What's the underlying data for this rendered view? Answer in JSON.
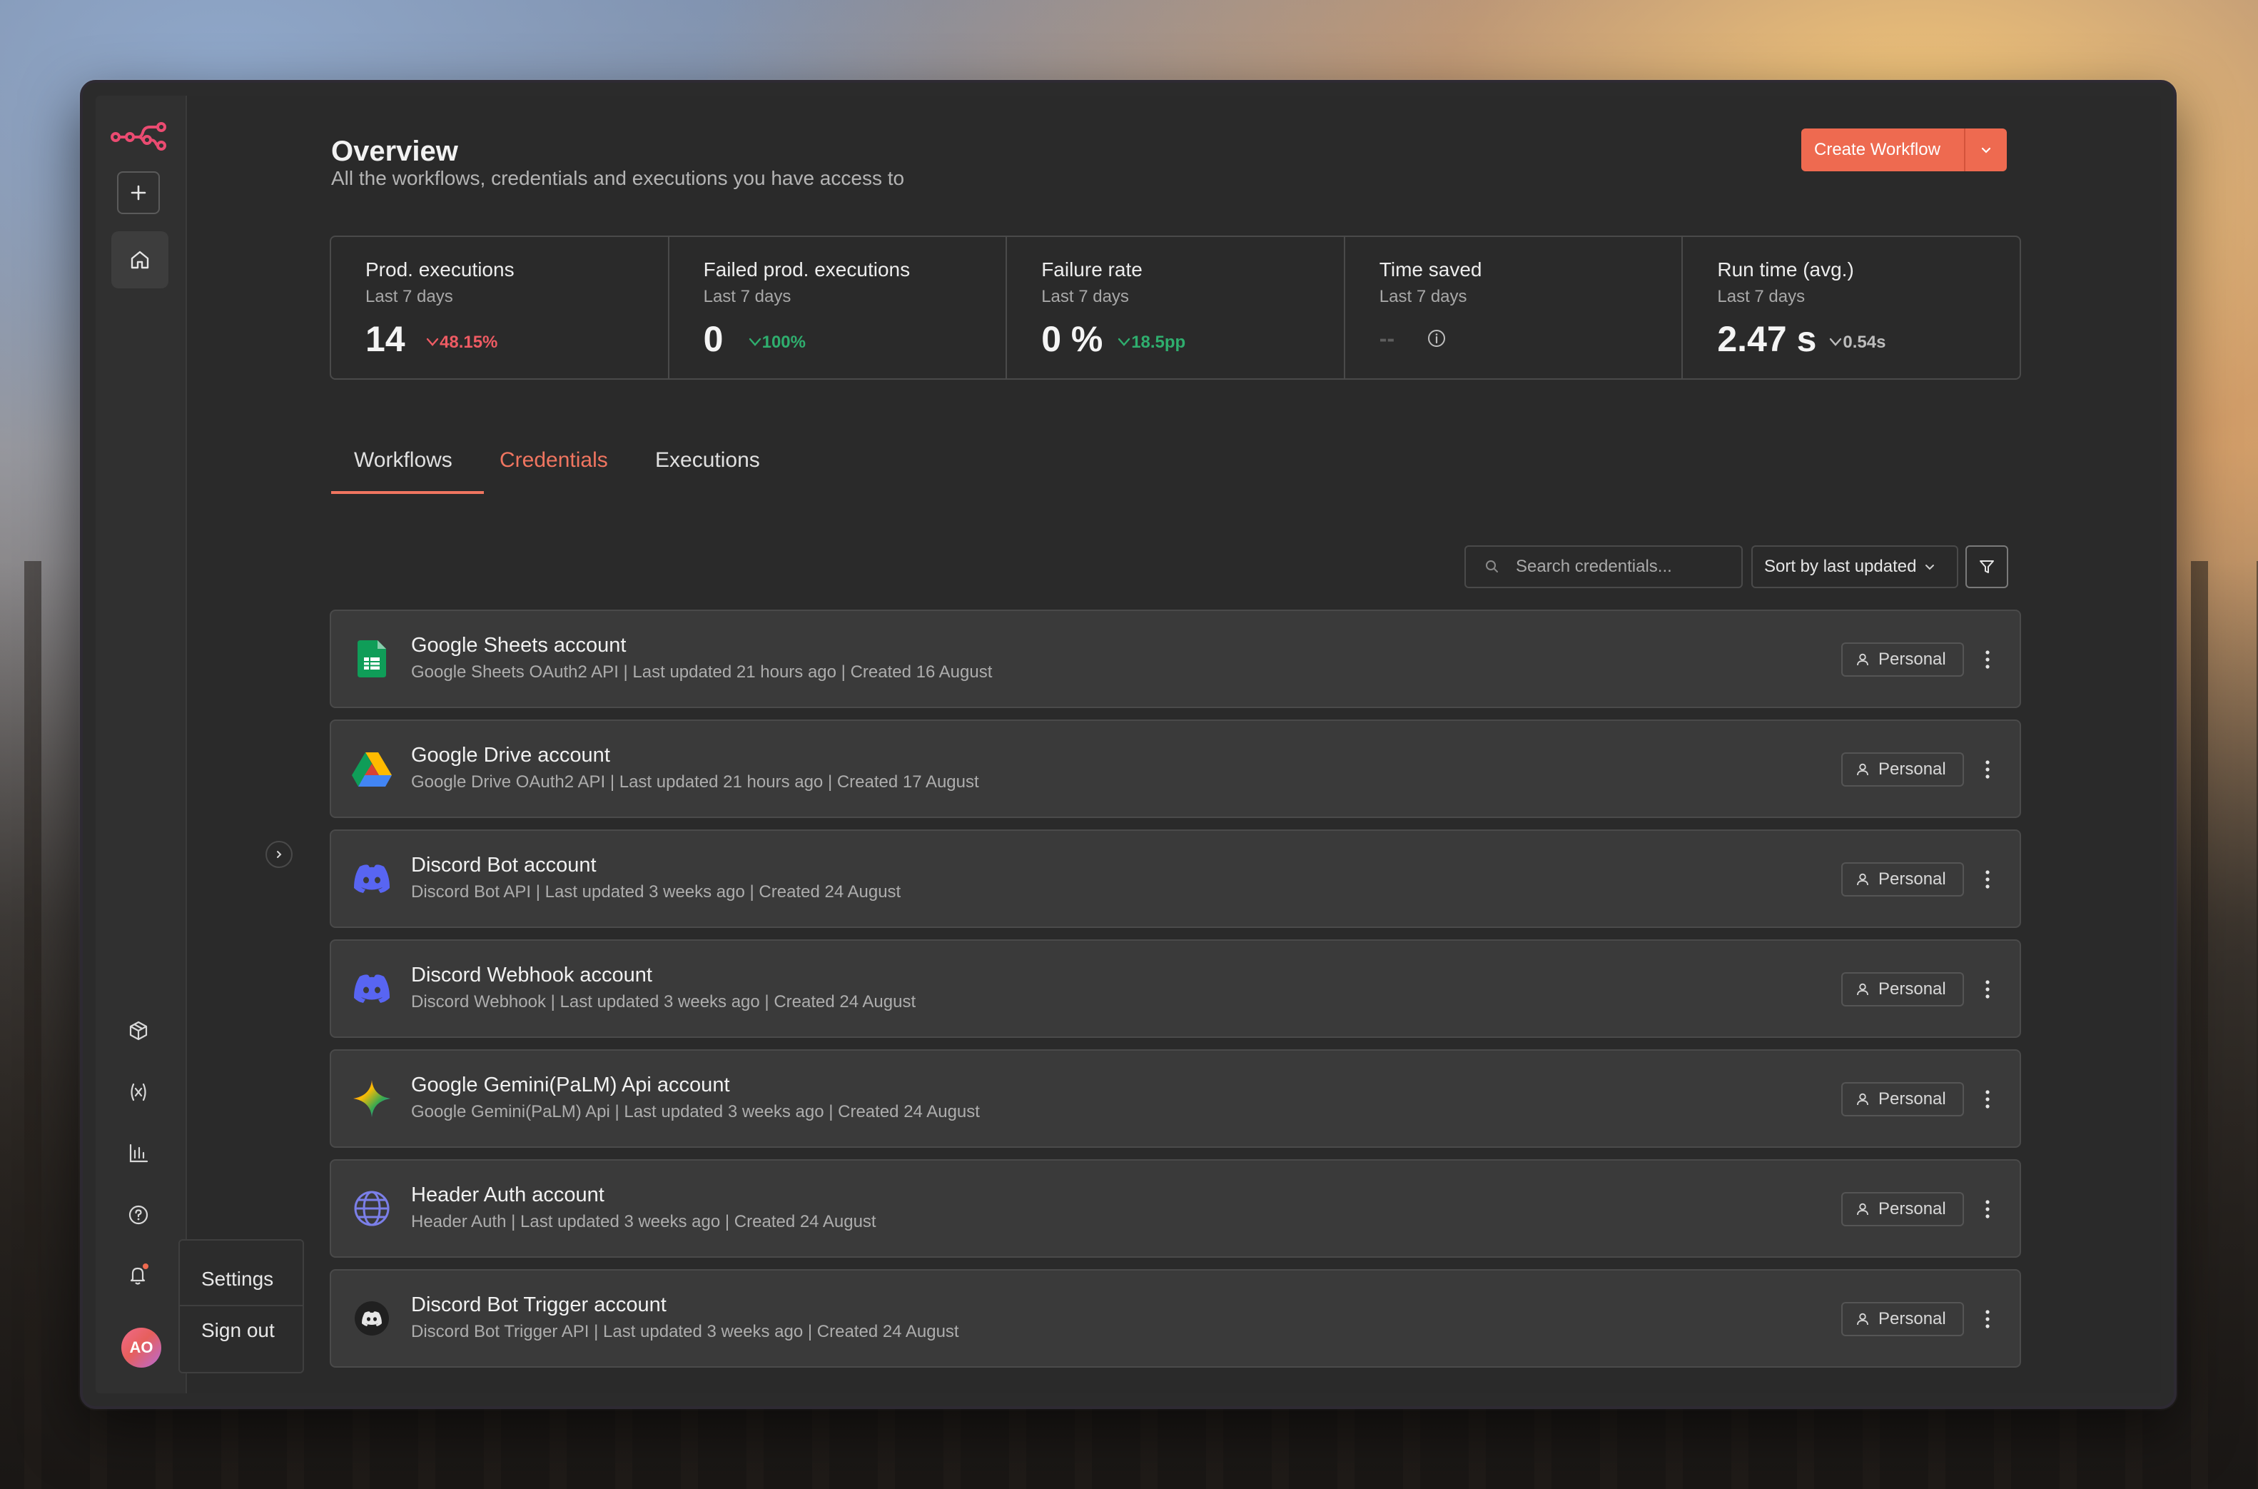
{
  "app": {
    "sidebar": {
      "notifications_dot_color": "#ee6a50",
      "avatar_initials": "AO",
      "user_menu": {
        "settings": "Settings",
        "sign_out": "Sign out"
      }
    },
    "header": {
      "title": "Overview",
      "subtitle": "All the workflows, credentials and executions you have access to",
      "create_button": "Create Workflow"
    },
    "stats": [
      {
        "title": "Prod. executions",
        "sub": "Last 7 days",
        "value": "14",
        "delta": "48.15%",
        "tone": "red"
      },
      {
        "title": "Failed prod. executions",
        "sub": "Last 7 days",
        "value": "0",
        "delta": "100%",
        "tone": "green"
      },
      {
        "title": "Failure rate",
        "sub": "Last 7 days",
        "value": "0 %",
        "delta": "18.5pp",
        "tone": "green"
      },
      {
        "title": "Time saved",
        "sub": "Last 7 days",
        "value": "--",
        "delta": "",
        "tone": "grey"
      },
      {
        "title": "Run time (avg.)",
        "sub": "Last 7 days",
        "value": "2.47 s",
        "delta": "0.54s",
        "tone": "grey"
      }
    ],
    "tabs": [
      "Workflows",
      "Credentials",
      "Executions"
    ],
    "active_tab": "Credentials",
    "search": {
      "placeholder": "Search credentials..."
    },
    "sort": {
      "label": "Sort by last updated"
    },
    "credentials": [
      {
        "name": "Google Sheets account",
        "meta": "Google Sheets OAuth2 API | Last updated 21 hours ago | Created 16 August",
        "icon": "google-sheets-icon",
        "badge": "Personal"
      },
      {
        "name": "Google Drive account",
        "meta": "Google Drive OAuth2 API | Last updated 21 hours ago | Created 17 August",
        "icon": "google-drive-icon",
        "badge": "Personal"
      },
      {
        "name": "Discord Bot account",
        "meta": "Discord Bot API | Last updated 3 weeks ago | Created 24 August",
        "icon": "discord-icon",
        "badge": "Personal"
      },
      {
        "name": "Discord Webhook account",
        "meta": "Discord Webhook | Last updated 3 weeks ago | Created 24 August",
        "icon": "discord-icon",
        "badge": "Personal"
      },
      {
        "name": "Google Gemini(PaLM) Api account",
        "meta": "Google Gemini(PaLM) Api | Last updated 3 weeks ago | Created 24 August",
        "icon": "gemini-icon",
        "badge": "Personal"
      },
      {
        "name": "Header Auth account",
        "meta": "Header Auth | Last updated 3 weeks ago | Created 24 August",
        "icon": "globe-icon",
        "badge": "Personal"
      },
      {
        "name": "Discord Bot Trigger account",
        "meta": "Discord Bot Trigger API | Last updated 3 weeks ago | Created 24 August",
        "icon": "discord-dark-icon",
        "badge": "Personal"
      }
    ],
    "colors": {
      "accent": "#ee6a50",
      "negative": "#ee5b63",
      "positive": "#2fae6e",
      "discord": "#5865f2"
    }
  }
}
